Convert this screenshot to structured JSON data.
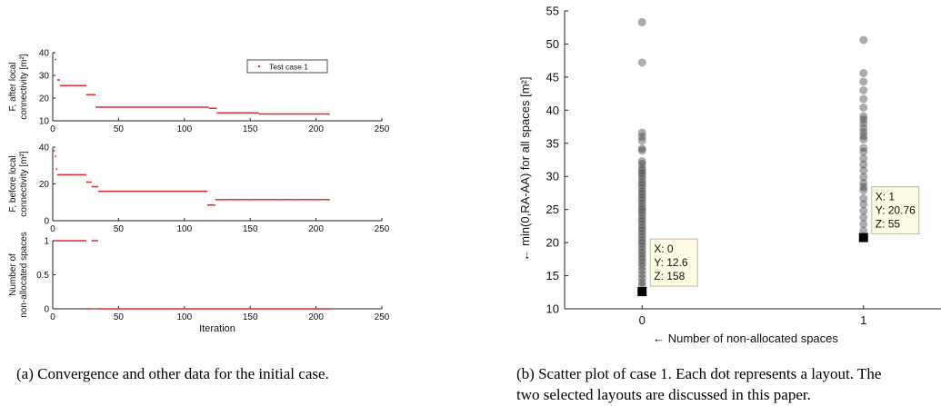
{
  "chart_data": [
    {
      "type": "scatter",
      "id": "top",
      "xlim": [
        0,
        250
      ],
      "ylim": [
        10,
        40
      ],
      "xticks": [
        "0",
        "50",
        "100",
        "150",
        "200",
        "250"
      ],
      "yticks": [
        "10",
        "20",
        "30",
        "40"
      ],
      "ylabel_lines": [
        "F, after local",
        "connectivity [m²]"
      ],
      "legend": "Test case 1",
      "legend_position": "top-right",
      "color": "#e0242b",
      "steps": [
        {
          "x0": 1,
          "x1": 1,
          "y": 40
        },
        {
          "x0": 2,
          "x1": 2,
          "y": 37
        },
        {
          "x0": 4,
          "x1": 5,
          "y": 28
        },
        {
          "x0": 6,
          "x1": 25,
          "y": 25.5
        },
        {
          "x0": 26,
          "x1": 32,
          "y": 21.5
        },
        {
          "x0": 33,
          "x1": 118,
          "y": 16
        },
        {
          "x0": 119,
          "x1": 124,
          "y": 15.5
        },
        {
          "x0": 125,
          "x1": 156,
          "y": 13.5
        },
        {
          "x0": 157,
          "x1": 210,
          "y": 13
        }
      ]
    },
    {
      "type": "scatter",
      "id": "middle",
      "xlim": [
        0,
        250
      ],
      "ylim": [
        0,
        40
      ],
      "xticks": [
        "0",
        "50",
        "100",
        "150",
        "200",
        "250"
      ],
      "yticks": [
        "0",
        "20",
        "40"
      ],
      "ylabel_lines": [
        "F, before local",
        "connectivity [m²]"
      ],
      "color": "#e0242b",
      "steps": [
        {
          "x0": 1,
          "x1": 1,
          "y": 38
        },
        {
          "x0": 2,
          "x1": 2,
          "y": 35
        },
        {
          "x0": 3,
          "x1": 3,
          "y": 28
        },
        {
          "x0": 4,
          "x1": 25,
          "y": 25
        },
        {
          "x0": 26,
          "x1": 29,
          "y": 21
        },
        {
          "x0": 30,
          "x1": 34,
          "y": 18.5
        },
        {
          "x0": 35,
          "x1": 117,
          "y": 16
        },
        {
          "x0": 118,
          "x1": 123,
          "y": 8.5
        },
        {
          "x0": 124,
          "x1": 210,
          "y": 11.5
        }
      ]
    },
    {
      "type": "scatter",
      "id": "bottom",
      "xlim": [
        0,
        250
      ],
      "ylim": [
        0,
        1
      ],
      "xticks": [
        "0",
        "50",
        "100",
        "150",
        "200",
        "250"
      ],
      "yticks": [
        "0",
        "0.5",
        "1"
      ],
      "ylabel_lines": [
        "Number of",
        "non-allocated spaces"
      ],
      "xlabel": "Iteration",
      "color": "#e0242b",
      "steps": [
        {
          "x0": 1,
          "x1": 25,
          "y": 1
        },
        {
          "x0": 26,
          "x1": 29,
          "y": 0
        },
        {
          "x0": 30,
          "x1": 34,
          "y": 1
        },
        {
          "x0": 35,
          "x1": 210,
          "y": 0
        }
      ]
    },
    {
      "type": "scatter",
      "id": "right",
      "xlim": [
        -0.35,
        1.35
      ],
      "ylim": [
        10,
        55
      ],
      "xticks": [
        "0",
        "1"
      ],
      "yticks": [
        "10",
        "15",
        "20",
        "25",
        "30",
        "35",
        "40",
        "45",
        "50",
        "55"
      ],
      "xlabel": "← Number of non-allocated spaces",
      "ylabel": "← min(0,RA-AA) for all spaces [m²]",
      "points": [
        {
          "x": 0,
          "y": [
            53.3,
            47.2,
            36.6,
            36.0,
            35.4,
            34.2,
            33.9,
            32.3,
            31.9,
            31.3,
            30.9,
            30.5,
            30.1,
            29.6,
            29.1,
            28.7,
            28.2,
            27.7,
            27.3,
            26.8,
            26.4,
            25.9,
            25.4,
            25.0,
            24.6,
            24.1,
            23.6,
            23.2,
            22.7,
            22.2,
            21.8,
            21.3,
            20.8,
            20.3,
            19.9,
            19.4,
            18.9,
            18.4,
            17.9,
            17.4,
            16.9,
            16.4,
            15.8,
            15.2,
            14.6,
            14.0,
            13.5
          ]
        },
        {
          "x": 1,
          "y": [
            50.6,
            45.6,
            44.3,
            43.0,
            41.7,
            40.4,
            39.1,
            38.6,
            38.0,
            37.3,
            36.7,
            36.1,
            35.6,
            34.3,
            33.7,
            32.7,
            31.8,
            30.9,
            29.9,
            29.0,
            28.4,
            27.9,
            26.7,
            25.8,
            24.8,
            23.8,
            22.8,
            21.8
          ]
        }
      ],
      "selected": [
        {
          "x": 0,
          "y": 12.6,
          "tip": [
            "X: 0",
            "Y: 12.6",
            "Z: 158"
          ]
        },
        {
          "x": 1,
          "y": 20.76,
          "tip": [
            "X: 1",
            "Y: 20.76",
            "Z: 55"
          ]
        }
      ]
    }
  ],
  "captions": {
    "a": [
      "(a) Convergence and other data for the initial case."
    ],
    "b": [
      "(b) Scatter plot of case 1. Each dot represents a layout. The",
      "two selected layouts are discussed in this paper."
    ]
  }
}
